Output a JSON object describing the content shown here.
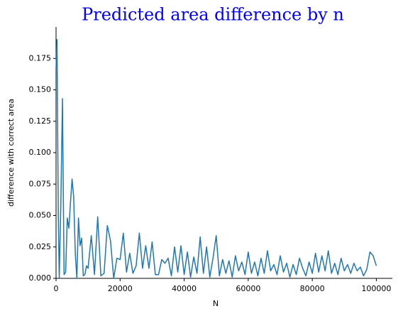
{
  "chart_data": {
    "type": "line",
    "title": "Predicted area difference by n",
    "x_label": "N",
    "y_label": "difference with correct area",
    "x": [
      0,
      300,
      700,
      1000,
      1500,
      2000,
      2500,
      3000,
      3500,
      4000,
      4500,
      5000,
      5500,
      6000,
      6500,
      7000,
      7500,
      8000,
      8500,
      9000,
      9500,
      10000,
      11000,
      12000,
      13000,
      14000,
      15000,
      16000,
      17000,
      18000,
      19000,
      20000,
      21000,
      22000,
      23000,
      24000,
      25000,
      26000,
      27000,
      28000,
      29000,
      30000,
      31000,
      32000,
      33000,
      34000,
      35000,
      36000,
      37000,
      38000,
      39000,
      40000,
      41000,
      42000,
      43000,
      44000,
      45000,
      46000,
      47000,
      48000,
      49000,
      50000,
      51000,
      52000,
      53000,
      54000,
      55000,
      56000,
      57000,
      58000,
      59000,
      60000,
      61000,
      62000,
      63000,
      64000,
      65000,
      66000,
      67000,
      68000,
      69000,
      70000,
      71000,
      72000,
      73000,
      74000,
      75000,
      76000,
      77000,
      78000,
      79000,
      80000,
      81000,
      82000,
      83000,
      84000,
      85000,
      86000,
      87000,
      88000,
      89000,
      90000,
      91000,
      92000,
      93000,
      94000,
      95000,
      96000,
      97000,
      98000,
      99000,
      100000
    ],
    "series": [
      {
        "color": "#1f77b4",
        "values": [
          0.167,
          0.19,
          0.05,
          0.0,
          0.06,
          0.143,
          0.003,
          0.005,
          0.048,
          0.04,
          0.06,
          0.079,
          0.065,
          0.02,
          0.0,
          0.048,
          0.026,
          0.032,
          0.002,
          0.003,
          0.01,
          0.008,
          0.034,
          0.003,
          0.049,
          0.002,
          0.004,
          0.042,
          0.03,
          0.0,
          0.016,
          0.015,
          0.036,
          0.005,
          0.02,
          0.004,
          0.01,
          0.036,
          0.008,
          0.026,
          0.008,
          0.029,
          0.003,
          0.003,
          0.015,
          0.012,
          0.016,
          0.002,
          0.025,
          0.005,
          0.026,
          0.003,
          0.021,
          0.001,
          0.017,
          0.004,
          0.033,
          0.004,
          0.025,
          0.001,
          0.016,
          0.034,
          0.002,
          0.015,
          0.004,
          0.014,
          0.001,
          0.018,
          0.006,
          0.013,
          0.003,
          0.021,
          0.004,
          0.013,
          0.002,
          0.016,
          0.004,
          0.022,
          0.006,
          0.011,
          0.003,
          0.018,
          0.005,
          0.012,
          0.001,
          0.011,
          0.003,
          0.016,
          0.008,
          0.002,
          0.013,
          0.004,
          0.02,
          0.005,
          0.018,
          0.006,
          0.022,
          0.004,
          0.012,
          0.003,
          0.016,
          0.006,
          0.011,
          0.004,
          0.012,
          0.006,
          0.009,
          0.002,
          0.007,
          0.021,
          0.018,
          0.01
        ]
      }
    ],
    "xlim": [
      0,
      105000
    ],
    "ylim": [
      0,
      0.2
    ],
    "xticks": [
      0,
      20000,
      40000,
      60000,
      80000,
      100000
    ],
    "yticks": [
      {
        "value": 0,
        "label": "0.000"
      },
      {
        "value": 0.025,
        "label": "0.025"
      },
      {
        "value": 0.05,
        "label": "0.050"
      },
      {
        "value": 0.075,
        "label": "0.075"
      },
      {
        "value": 0.1,
        "label": "0.100"
      },
      {
        "value": 0.125,
        "label": "0.125"
      },
      {
        "value": 0.15,
        "label": "0.150"
      },
      {
        "value": 0.175,
        "label": "0.175"
      }
    ]
  }
}
